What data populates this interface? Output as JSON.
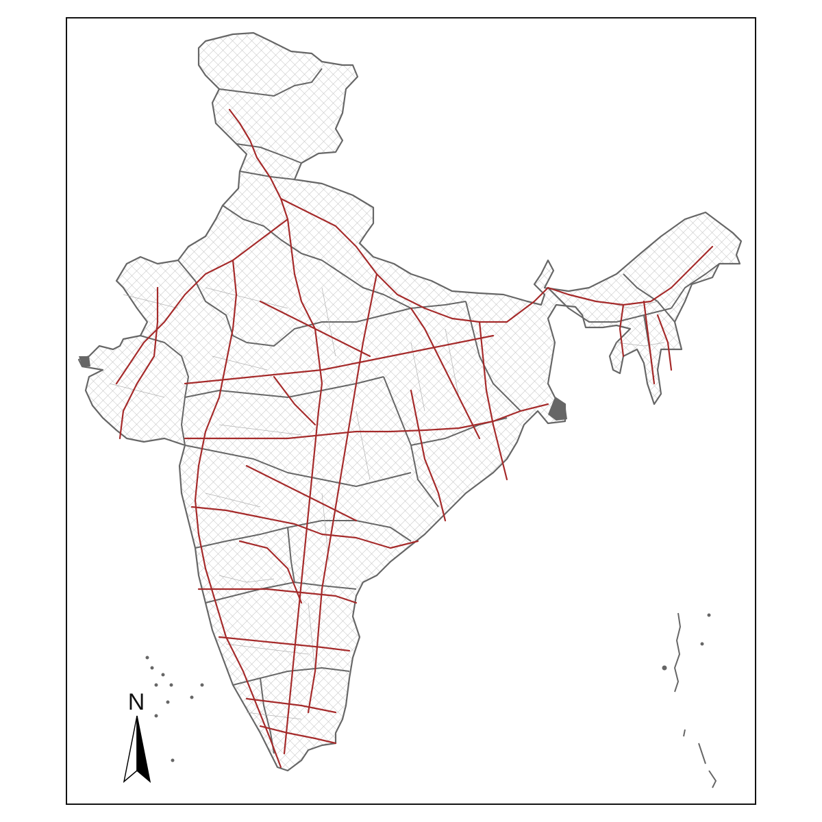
{
  "map": {
    "north_arrow_label": "N",
    "colors": {
      "background": "#ffffff",
      "frame": "#111111",
      "state_boundary": "#666666",
      "district_boundary": "#b0b0b0",
      "roads": "#a52a2a",
      "islands": "#666666"
    },
    "layers": [
      "district-boundaries",
      "state-boundaries",
      "national-highways"
    ]
  }
}
